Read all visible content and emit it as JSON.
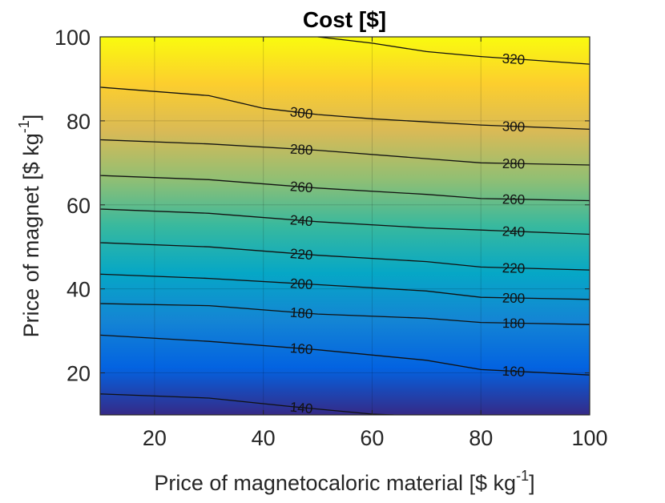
{
  "chart_data": {
    "type": "contour",
    "title": "Cost [$]",
    "xlabel": "Price of magnetocaloric material [$ kg",
    "xlabel_sup": "-1",
    "xlabel_end": "]",
    "ylabel": "Price of magnet [$ kg",
    "ylabel_sup": "-1",
    "ylabel_end": "]",
    "xlim": [
      10,
      100
    ],
    "ylim": [
      10,
      100
    ],
    "xticks": [
      20,
      40,
      60,
      80,
      100
    ],
    "yticks": [
      20,
      40,
      60,
      80,
      100
    ],
    "grid": true,
    "colormap": "parula",
    "color_range": [
      130,
      330
    ],
    "contours": [
      {
        "level": 140,
        "points": [
          [
            10,
            15
          ],
          [
            30,
            14
          ],
          [
            45,
            12
          ],
          [
            60,
            10.2
          ],
          [
            64,
            10
          ]
        ],
        "labels": [
          {
            "text": "140",
            "x": 47
          }
        ]
      },
      {
        "level": 160,
        "points": [
          [
            10,
            29
          ],
          [
            30,
            27.5
          ],
          [
            50,
            25.5
          ],
          [
            70,
            23
          ],
          [
            80,
            20.8
          ],
          [
            100,
            19.5
          ]
        ],
        "labels": [
          {
            "text": "160",
            "x": 47
          },
          {
            "text": "160",
            "x": 86
          }
        ]
      },
      {
        "level": 180,
        "points": [
          [
            10,
            36.5
          ],
          [
            30,
            36
          ],
          [
            50,
            34
          ],
          [
            70,
            33
          ],
          [
            80,
            32
          ],
          [
            100,
            31.5
          ]
        ],
        "labels": [
          {
            "text": "180",
            "x": 47
          },
          {
            "text": "180",
            "x": 86
          }
        ]
      },
      {
        "level": 200,
        "points": [
          [
            10,
            43.5
          ],
          [
            30,
            42.5
          ],
          [
            50,
            41
          ],
          [
            70,
            39.5
          ],
          [
            80,
            38
          ],
          [
            100,
            37.5
          ]
        ],
        "labels": [
          {
            "text": "200",
            "x": 47
          },
          {
            "text": "200",
            "x": 86
          }
        ]
      },
      {
        "level": 220,
        "points": [
          [
            10,
            51
          ],
          [
            30,
            50
          ],
          [
            50,
            48
          ],
          [
            70,
            46.5
          ],
          [
            80,
            45.2
          ],
          [
            100,
            44.5
          ]
        ],
        "labels": [
          {
            "text": "220",
            "x": 47
          },
          {
            "text": "220",
            "x": 86
          }
        ]
      },
      {
        "level": 240,
        "points": [
          [
            10,
            59
          ],
          [
            30,
            58
          ],
          [
            50,
            56
          ],
          [
            70,
            54.5
          ],
          [
            80,
            54
          ],
          [
            100,
            53
          ]
        ],
        "labels": [
          {
            "text": "240",
            "x": 47
          },
          {
            "text": "240",
            "x": 86
          }
        ]
      },
      {
        "level": 260,
        "points": [
          [
            10,
            67
          ],
          [
            30,
            66
          ],
          [
            50,
            64
          ],
          [
            70,
            62.5
          ],
          [
            80,
            61.5
          ],
          [
            100,
            61
          ]
        ],
        "labels": [
          {
            "text": "260",
            "x": 47
          },
          {
            "text": "260",
            "x": 86
          }
        ]
      },
      {
        "level": 280,
        "points": [
          [
            10,
            75.5
          ],
          [
            30,
            74.5
          ],
          [
            50,
            73
          ],
          [
            70,
            71
          ],
          [
            80,
            70
          ],
          [
            100,
            69.5
          ]
        ],
        "labels": [
          {
            "text": "280",
            "x": 47
          },
          {
            "text": "280",
            "x": 86
          }
        ]
      },
      {
        "level": 300,
        "points": [
          [
            10,
            88
          ],
          [
            30,
            86
          ],
          [
            40,
            83
          ],
          [
            50,
            81.5
          ],
          [
            60,
            80.5
          ],
          [
            80,
            79
          ],
          [
            100,
            78
          ]
        ],
        "labels": [
          {
            "text": "300",
            "x": 47
          },
          {
            "text": "300",
            "x": 86
          }
        ]
      },
      {
        "level": 320,
        "points": [
          [
            50,
            100
          ],
          [
            60,
            98.5
          ],
          [
            70,
            96.5
          ],
          [
            80,
            95.3
          ],
          [
            100,
            93.5
          ]
        ],
        "labels": [
          {
            "text": "320",
            "x": 86
          }
        ]
      }
    ]
  }
}
